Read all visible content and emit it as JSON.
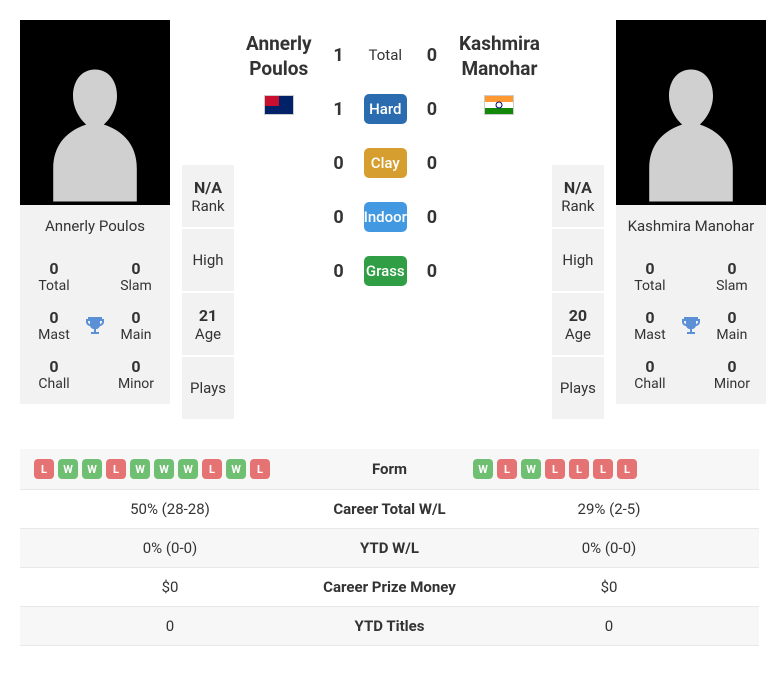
{
  "player1": {
    "full_name": "Annerly Poulos",
    "first_name": "Annerly",
    "last_name": "Poulos",
    "country": "Australia",
    "titles": {
      "total": {
        "value": "0",
        "label": "Total"
      },
      "slam": {
        "value": "0",
        "label": "Slam"
      },
      "mast": {
        "value": "0",
        "label": "Mast"
      },
      "main": {
        "value": "0",
        "label": "Main"
      },
      "chall": {
        "value": "0",
        "label": "Chall"
      },
      "minor": {
        "value": "0",
        "label": "Minor"
      }
    },
    "info": {
      "rank": {
        "value": "N/A",
        "label": "Rank"
      },
      "high": {
        "value": "",
        "label": "High"
      },
      "age": {
        "value": "21",
        "label": "Age"
      },
      "plays": {
        "value": "",
        "label": "Plays"
      }
    },
    "form": [
      "L",
      "W",
      "W",
      "L",
      "W",
      "W",
      "W",
      "L",
      "W",
      "L"
    ]
  },
  "player2": {
    "full_name": "Kashmira Manohar",
    "first_name": "Kashmira",
    "last_name": "Manohar",
    "country": "India",
    "titles": {
      "total": {
        "value": "0",
        "label": "Total"
      },
      "slam": {
        "value": "0",
        "label": "Slam"
      },
      "mast": {
        "value": "0",
        "label": "Mast"
      },
      "main": {
        "value": "0",
        "label": "Main"
      },
      "chall": {
        "value": "0",
        "label": "Chall"
      },
      "minor": {
        "value": "0",
        "label": "Minor"
      }
    },
    "info": {
      "rank": {
        "value": "N/A",
        "label": "Rank"
      },
      "high": {
        "value": "",
        "label": "High"
      },
      "age": {
        "value": "20",
        "label": "Age"
      },
      "plays": {
        "value": "",
        "label": "Plays"
      }
    },
    "form": [
      "W",
      "L",
      "W",
      "L",
      "L",
      "L",
      "L"
    ]
  },
  "h2h": {
    "total": {
      "label": "Total",
      "p1": "1",
      "p2": "0"
    },
    "hard": {
      "label": "Hard",
      "p1": "1",
      "p2": "0",
      "color": "#2b6cb0"
    },
    "clay": {
      "label": "Clay",
      "p1": "0",
      "p2": "0",
      "color": "#d69e2e"
    },
    "indoor": {
      "label": "Indoor",
      "p1": "0",
      "p2": "0",
      "color": "#4299e1"
    },
    "grass": {
      "label": "Grass",
      "p1": "0",
      "p2": "0",
      "color": "#2f9e44"
    }
  },
  "compare": {
    "form": {
      "label": "Form"
    },
    "career_wl": {
      "label": "Career Total W/L",
      "p1": "50% (28-28)",
      "p2": "29% (2-5)"
    },
    "ytd_wl": {
      "label": "YTD W/L",
      "p1": "0% (0-0)",
      "p2": "0% (0-0)"
    },
    "prize": {
      "label": "Career Prize Money",
      "p1": "$0",
      "p2": "$0"
    },
    "ytd_titles": {
      "label": "YTD Titles",
      "p1": "0",
      "p2": "0"
    }
  },
  "colors": {
    "win_badge": "#6fbf73",
    "loss_badge": "#e57373",
    "bg_alt": "#f7f7f7",
    "panel_bg": "#f2f2f2"
  }
}
